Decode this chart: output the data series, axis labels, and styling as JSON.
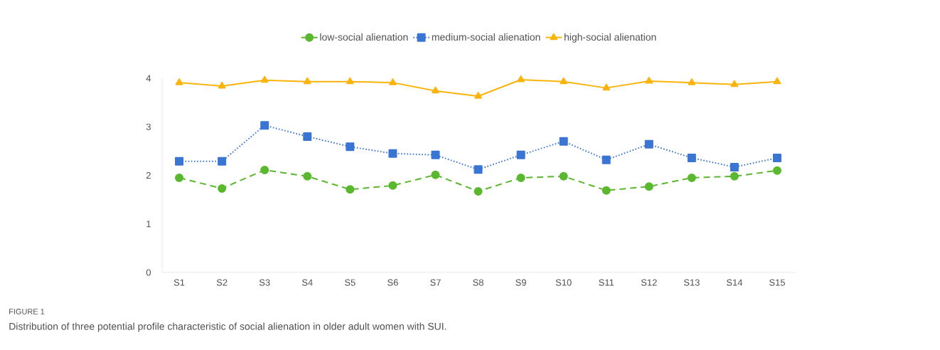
{
  "chart_data": {
    "type": "line",
    "categories": [
      "S1",
      "S2",
      "S3",
      "S4",
      "S5",
      "S6",
      "S7",
      "S8",
      "S9",
      "S10",
      "S11",
      "S12",
      "S13",
      "S14",
      "S15"
    ],
    "series": [
      {
        "name": "low-social alienation",
        "color": "#5ab82e",
        "marker": "circle",
        "line_style": "dashed",
        "values": [
          1.95,
          1.73,
          2.11,
          1.98,
          1.71,
          1.79,
          2.01,
          1.67,
          1.95,
          1.98,
          1.69,
          1.77,
          1.95,
          1.98,
          2.1
        ]
      },
      {
        "name": "medium-social alienation",
        "color": "#3a75d4",
        "marker": "square",
        "line_style": "dotted",
        "values": [
          2.29,
          2.29,
          3.03,
          2.8,
          2.59,
          2.45,
          2.42,
          2.12,
          2.42,
          2.7,
          2.32,
          2.64,
          2.36,
          2.17,
          2.36
        ]
      },
      {
        "name": "high-social alienation",
        "color": "#fbb40c",
        "marker": "triangle",
        "line_style": "solid",
        "values": [
          3.91,
          3.84,
          3.96,
          3.93,
          3.93,
          3.91,
          3.74,
          3.63,
          3.97,
          3.93,
          3.8,
          3.94,
          3.91,
          3.87,
          3.93
        ]
      }
    ],
    "ylim": [
      0,
      4
    ],
    "yticks": [
      0,
      1,
      2,
      3,
      4
    ],
    "grid": false,
    "legend": "top",
    "annotations": [
      "FIGURE 1",
      "Distribution of three potential profile characteristic of social alienation in older adult women with SUI."
    ]
  }
}
